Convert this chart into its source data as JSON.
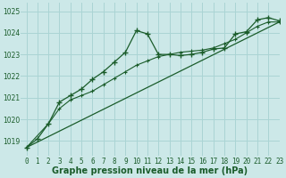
{
  "title": "Graphe pression niveau de la mer (hPa)",
  "bg_color": "#cce8e8",
  "grid_color": "#aad4d4",
  "line_color": "#1a5c2a",
  "xlim": [
    -0.5,
    23
  ],
  "ylim": [
    1018.3,
    1025.4
  ],
  "yticks": [
    1019,
    1020,
    1021,
    1022,
    1023,
    1024,
    1025
  ],
  "xticks": [
    0,
    1,
    2,
    3,
    4,
    5,
    6,
    7,
    8,
    9,
    10,
    11,
    12,
    13,
    14,
    15,
    16,
    17,
    18,
    19,
    20,
    21,
    22,
    23
  ],
  "series1_x": [
    0,
    1,
    2,
    3,
    4,
    5,
    6,
    7,
    8,
    9,
    10,
    11,
    12,
    13,
    14,
    15,
    16,
    17,
    18,
    19,
    20,
    21,
    22,
    23
  ],
  "series1_y": [
    1018.7,
    1019.1,
    1019.8,
    1020.8,
    1021.1,
    1021.4,
    1021.85,
    1022.2,
    1022.65,
    1023.1,
    1024.1,
    1023.95,
    1023.0,
    1023.0,
    1022.95,
    1023.0,
    1023.1,
    1023.25,
    1023.3,
    1023.95,
    1024.05,
    1024.6,
    1024.7,
    1024.55
  ],
  "series2_x": [
    0,
    2,
    3,
    4,
    5,
    6,
    7,
    8,
    9,
    10,
    11,
    12,
    13,
    14,
    15,
    16,
    17,
    18,
    19,
    20,
    21,
    22,
    23
  ],
  "series2_y": [
    1018.7,
    1019.8,
    1020.5,
    1020.9,
    1021.1,
    1021.3,
    1021.6,
    1021.9,
    1022.2,
    1022.5,
    1022.7,
    1022.9,
    1023.0,
    1023.1,
    1023.15,
    1023.2,
    1023.3,
    1023.5,
    1023.7,
    1024.0,
    1024.3,
    1024.5,
    1024.5
  ],
  "series3_x": [
    0,
    23
  ],
  "series3_y": [
    1018.7,
    1024.5
  ],
  "xlabel_fontsize": 7,
  "tick_fontsize": 5.5,
  "ylabel_fontsize": 5.5
}
